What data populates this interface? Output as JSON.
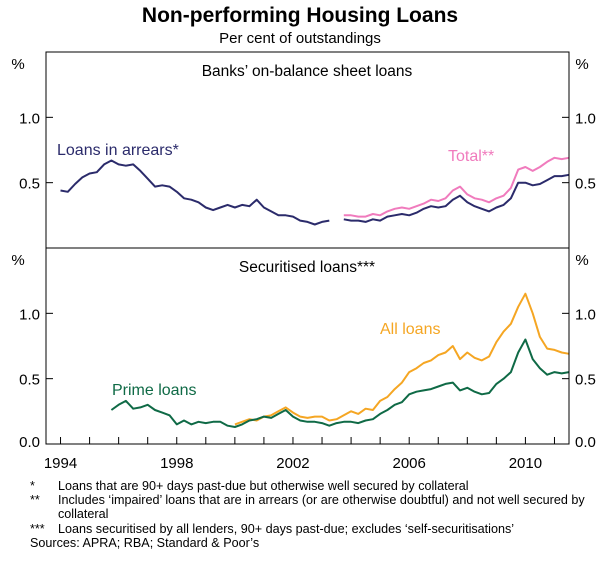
{
  "chart_data": {
    "type": "line",
    "title": "Non-performing Housing Loans",
    "subtitle": "Per cent of outstandings",
    "unit_label": "%",
    "x_tick_labels": [
      "1994",
      "1998",
      "2002",
      "2006",
      "2010"
    ],
    "xlim": [
      1993.5,
      2011.5
    ],
    "panels": [
      {
        "title": "Banks’ on-balance sheet loans",
        "ylim": [
          0,
          1.5
        ],
        "y_tick_labels": [
          "1.0",
          "0.5"
        ],
        "y_tick_values": [
          1.0,
          0.5
        ],
        "series": [
          {
            "name": "Loans in arrears*",
            "color": "#2b2b6b",
            "points": [
              [
                1994.0,
                0.44
              ],
              [
                1994.25,
                0.43
              ],
              [
                1994.5,
                0.49
              ],
              [
                1994.75,
                0.54
              ],
              [
                1995.0,
                0.57
              ],
              [
                1995.25,
                0.58
              ],
              [
                1995.5,
                0.64
              ],
              [
                1995.75,
                0.67
              ],
              [
                1996.0,
                0.64
              ],
              [
                1996.25,
                0.63
              ],
              [
                1996.5,
                0.64
              ],
              [
                1996.75,
                0.59
              ],
              [
                1997.0,
                0.53
              ],
              [
                1997.25,
                0.47
              ],
              [
                1997.5,
                0.48
              ],
              [
                1997.75,
                0.47
              ],
              [
                1998.0,
                0.43
              ],
              [
                1998.25,
                0.38
              ],
              [
                1998.5,
                0.37
              ],
              [
                1998.75,
                0.35
              ],
              [
                1999.0,
                0.31
              ],
              [
                1999.25,
                0.29
              ],
              [
                1999.5,
                0.31
              ],
              [
                1999.75,
                0.33
              ],
              [
                2000.0,
                0.31
              ],
              [
                2000.25,
                0.33
              ],
              [
                2000.5,
                0.32
              ],
              [
                2000.75,
                0.37
              ],
              [
                2001.0,
                0.31
              ],
              [
                2001.25,
                0.28
              ],
              [
                2001.5,
                0.25
              ],
              [
                2001.75,
                0.25
              ],
              [
                2002.0,
                0.24
              ],
              [
                2002.25,
                0.21
              ],
              [
                2002.5,
                0.2
              ],
              [
                2002.75,
                0.18
              ],
              [
                2003.0,
                0.2
              ],
              [
                2003.25,
                0.21
              ],
              [
                2003.5,
                null
              ],
              [
                2003.75,
                0.22
              ],
              [
                2004.0,
                0.21
              ],
              [
                2004.25,
                0.21
              ],
              [
                2004.5,
                0.2
              ],
              [
                2004.75,
                0.22
              ],
              [
                2005.0,
                0.21
              ],
              [
                2005.25,
                0.24
              ],
              [
                2005.5,
                0.25
              ],
              [
                2005.75,
                0.26
              ],
              [
                2006.0,
                0.25
              ],
              [
                2006.25,
                0.27
              ],
              [
                2006.5,
                0.3
              ],
              [
                2006.75,
                0.32
              ],
              [
                2007.0,
                0.31
              ],
              [
                2007.25,
                0.32
              ],
              [
                2007.5,
                0.37
              ],
              [
                2007.75,
                0.4
              ],
              [
                2008.0,
                0.35
              ],
              [
                2008.25,
                0.32
              ],
              [
                2008.5,
                0.3
              ],
              [
                2008.75,
                0.28
              ],
              [
                2009.0,
                0.31
              ],
              [
                2009.25,
                0.33
              ],
              [
                2009.5,
                0.38
              ],
              [
                2009.75,
                0.5
              ],
              [
                2010.0,
                0.5
              ],
              [
                2010.25,
                0.48
              ],
              [
                2010.5,
                0.49
              ],
              [
                2010.75,
                0.52
              ],
              [
                2011.0,
                0.55
              ],
              [
                2011.25,
                0.55
              ],
              [
                2011.5,
                0.56
              ]
            ]
          },
          {
            "name": "Total**",
            "color": "#f07bbd",
            "points": [
              [
                2003.75,
                0.25
              ],
              [
                2004.0,
                0.25
              ],
              [
                2004.25,
                0.24
              ],
              [
                2004.5,
                0.24
              ],
              [
                2004.75,
                0.26
              ],
              [
                2005.0,
                0.25
              ],
              [
                2005.25,
                0.28
              ],
              [
                2005.5,
                0.3
              ],
              [
                2005.75,
                0.31
              ],
              [
                2006.0,
                0.3
              ],
              [
                2006.25,
                0.32
              ],
              [
                2006.5,
                0.34
              ],
              [
                2006.75,
                0.37
              ],
              [
                2007.0,
                0.36
              ],
              [
                2007.25,
                0.38
              ],
              [
                2007.5,
                0.44
              ],
              [
                2007.75,
                0.47
              ],
              [
                2008.0,
                0.41
              ],
              [
                2008.25,
                0.38
              ],
              [
                2008.5,
                0.37
              ],
              [
                2008.75,
                0.35
              ],
              [
                2009.0,
                0.38
              ],
              [
                2009.25,
                0.4
              ],
              [
                2009.5,
                0.46
              ],
              [
                2009.75,
                0.6
              ],
              [
                2010.0,
                0.62
              ],
              [
                2010.25,
                0.59
              ],
              [
                2010.5,
                0.62
              ],
              [
                2010.75,
                0.66
              ],
              [
                2011.0,
                0.69
              ],
              [
                2011.25,
                0.68
              ],
              [
                2011.5,
                0.69
              ]
            ]
          }
        ]
      },
      {
        "title": "Securitised loans***",
        "ylim": [
          0,
          1.5
        ],
        "y_tick_labels": [
          "1.0",
          "0.5",
          "0.0"
        ],
        "y_tick_values": [
          1.0,
          0.5,
          0.0
        ],
        "series": [
          {
            "name": "All loans",
            "color": "#f5a623",
            "points": [
              [
                2000.0,
                0.15
              ],
              [
                2000.25,
                0.17
              ],
              [
                2000.5,
                0.19
              ],
              [
                2000.75,
                0.18
              ],
              [
                2001.0,
                0.21
              ],
              [
                2001.25,
                0.22
              ],
              [
                2001.5,
                0.25
              ],
              [
                2001.75,
                0.28
              ],
              [
                2002.0,
                0.24
              ],
              [
                2002.25,
                0.21
              ],
              [
                2002.5,
                0.2
              ],
              [
                2002.75,
                0.21
              ],
              [
                2003.0,
                0.21
              ],
              [
                2003.25,
                0.18
              ],
              [
                2003.5,
                0.19
              ],
              [
                2003.75,
                0.22
              ],
              [
                2004.0,
                0.25
              ],
              [
                2004.25,
                0.23
              ],
              [
                2004.5,
                0.27
              ],
              [
                2004.75,
                0.26
              ],
              [
                2005.0,
                0.33
              ],
              [
                2005.25,
                0.36
              ],
              [
                2005.5,
                0.42
              ],
              [
                2005.75,
                0.47
              ],
              [
                2006.0,
                0.55
              ],
              [
                2006.25,
                0.58
              ],
              [
                2006.5,
                0.62
              ],
              [
                2006.75,
                0.64
              ],
              [
                2007.0,
                0.68
              ],
              [
                2007.25,
                0.7
              ],
              [
                2007.5,
                0.75
              ],
              [
                2007.75,
                0.65
              ],
              [
                2008.0,
                0.7
              ],
              [
                2008.25,
                0.66
              ],
              [
                2008.5,
                0.64
              ],
              [
                2008.75,
                0.67
              ],
              [
                2009.0,
                0.78
              ],
              [
                2009.25,
                0.86
              ],
              [
                2009.5,
                0.92
              ],
              [
                2009.75,
                1.05
              ],
              [
                2010.0,
                1.15
              ],
              [
                2010.25,
                1.0
              ],
              [
                2010.5,
                0.82
              ],
              [
                2010.75,
                0.73
              ],
              [
                2011.0,
                0.72
              ],
              [
                2011.25,
                0.7
              ],
              [
                2011.5,
                0.69
              ]
            ]
          },
          {
            "name": "Prime loans",
            "color": "#0f6a46",
            "points": [
              [
                1995.75,
                0.26
              ],
              [
                1996.0,
                0.3
              ],
              [
                1996.25,
                0.33
              ],
              [
                1996.5,
                0.27
              ],
              [
                1996.75,
                0.28
              ],
              [
                1997.0,
                0.3
              ],
              [
                1997.25,
                0.26
              ],
              [
                1997.5,
                0.24
              ],
              [
                1997.75,
                0.22
              ],
              [
                1998.0,
                0.15
              ],
              [
                1998.25,
                0.18
              ],
              [
                1998.5,
                0.15
              ],
              [
                1998.75,
                0.17
              ],
              [
                1999.0,
                0.16
              ],
              [
                1999.25,
                0.17
              ],
              [
                1999.5,
                0.17
              ],
              [
                1999.75,
                0.14
              ],
              [
                2000.0,
                0.13
              ],
              [
                2000.25,
                0.15
              ],
              [
                2000.5,
                0.18
              ],
              [
                2000.75,
                0.19
              ],
              [
                2001.0,
                0.21
              ],
              [
                2001.25,
                0.2
              ],
              [
                2001.5,
                0.23
              ],
              [
                2001.75,
                0.26
              ],
              [
                2002.0,
                0.21
              ],
              [
                2002.25,
                0.18
              ],
              [
                2002.5,
                0.17
              ],
              [
                2002.75,
                0.17
              ],
              [
                2003.0,
                0.16
              ],
              [
                2003.25,
                0.14
              ],
              [
                2003.5,
                0.16
              ],
              [
                2003.75,
                0.17
              ],
              [
                2004.0,
                0.17
              ],
              [
                2004.25,
                0.16
              ],
              [
                2004.5,
                0.18
              ],
              [
                2004.75,
                0.19
              ],
              [
                2005.0,
                0.23
              ],
              [
                2005.25,
                0.26
              ],
              [
                2005.5,
                0.3
              ],
              [
                2005.75,
                0.32
              ],
              [
                2006.0,
                0.38
              ],
              [
                2006.25,
                0.4
              ],
              [
                2006.5,
                0.41
              ],
              [
                2006.75,
                0.42
              ],
              [
                2007.0,
                0.44
              ],
              [
                2007.25,
                0.46
              ],
              [
                2007.5,
                0.47
              ],
              [
                2007.75,
                0.41
              ],
              [
                2008.0,
                0.43
              ],
              [
                2008.25,
                0.4
              ],
              [
                2008.5,
                0.38
              ],
              [
                2008.75,
                0.39
              ],
              [
                2009.0,
                0.46
              ],
              [
                2009.25,
                0.5
              ],
              [
                2009.5,
                0.55
              ],
              [
                2009.75,
                0.7
              ],
              [
                2010.0,
                0.8
              ],
              [
                2010.25,
                0.65
              ],
              [
                2010.5,
                0.58
              ],
              [
                2010.75,
                0.53
              ],
              [
                2011.0,
                0.55
              ],
              [
                2011.25,
                0.54
              ],
              [
                2011.5,
                0.55
              ]
            ]
          }
        ]
      }
    ]
  },
  "footnotes": [
    {
      "mark": "*",
      "text": "Loans that are 90+ days past-due but otherwise well secured by collateral"
    },
    {
      "mark": "**",
      "text": "Includes ‘impaired’ loans that are in arrears (or are otherwise doubtful) and not well secured by collateral"
    },
    {
      "mark": "***",
      "text": "Loans securitised by all lenders, 90+ days past-due; excludes ‘self-securitisations’"
    }
  ],
  "sources": "Sources: APRA; RBA; Standard & Poor’s"
}
